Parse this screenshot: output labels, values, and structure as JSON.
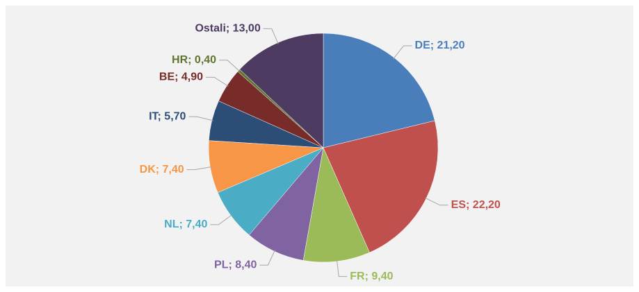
{
  "chart_data": {
    "type": "pie",
    "values": [
      21.2,
      22.2,
      9.4,
      8.4,
      7.4,
      7.4,
      5.7,
      4.9,
      0.4,
      13.0
    ],
    "value_labels": [
      "DE; 21,20",
      "ES; 22,20",
      "FR; 9,40",
      "PL; 8,40",
      "NL; 7,40",
      "DK; 7,40",
      "IT; 5,70",
      "BE; 4,90",
      "HR; 0,40",
      "Ostali; 13,00"
    ],
    "colors": [
      "#4a7ebb",
      "#c0504d",
      "#9bbb59",
      "#8064a2",
      "#4bacc6",
      "#f79646",
      "#2c4d75",
      "#772c2a",
      "#5f7530",
      "#4d3b62"
    ],
    "label_colors": [
      "#4a7ebb",
      "#c0504d",
      "#9bbb59",
      "#8064a2",
      "#4bacc6",
      "#f79646",
      "#2c4d75",
      "#772c2a",
      "#5f7530",
      "#4d3b62"
    ]
  }
}
